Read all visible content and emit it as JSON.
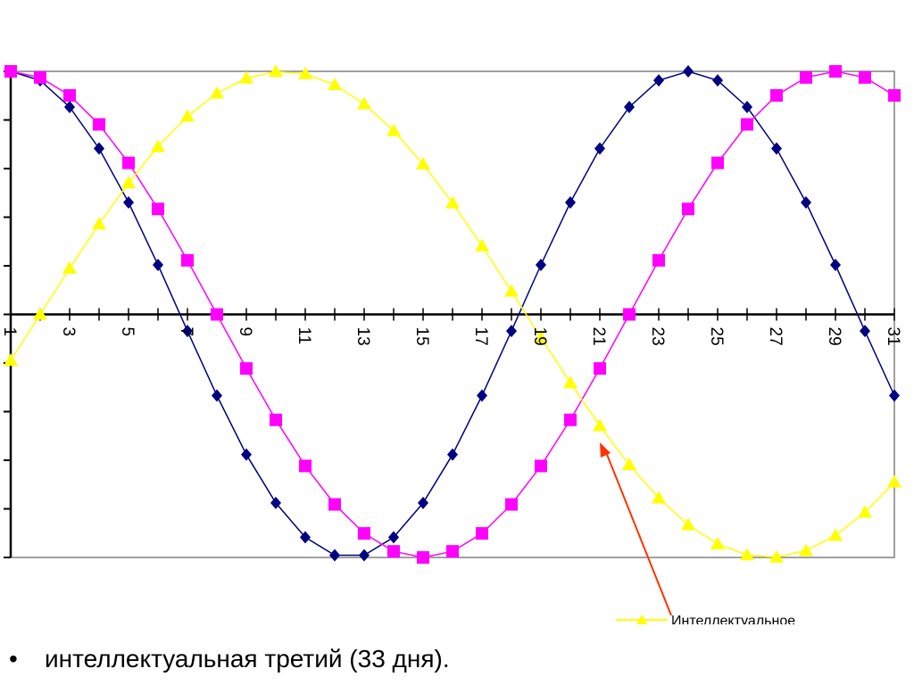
{
  "chart_data": {
    "type": "line",
    "x": [
      1,
      2,
      3,
      4,
      5,
      6,
      7,
      8,
      9,
      10,
      11,
      12,
      13,
      14,
      15,
      16,
      17,
      18,
      19,
      20,
      21,
      22,
      23,
      24,
      25,
      26,
      27,
      28,
      29,
      30,
      31
    ],
    "tick_labels": [
      "1",
      "3",
      "5",
      "7",
      "9",
      "11",
      "13",
      "15",
      "17",
      "19",
      "21",
      "23",
      "25",
      "27",
      "29",
      "31"
    ],
    "ylim": [
      -1,
      1
    ],
    "grid": false,
    "series": [
      {
        "color": "#000080",
        "marker": "diamond",
        "period": 23,
        "values": [
          1.0,
          0.9627,
          0.8533,
          0.6825,
          0.4605,
          0.2035,
          -0.0682,
          -0.334,
          -0.5767,
          -0.7757,
          -0.9172,
          -0.9907,
          -0.9907,
          -0.9172,
          -0.7757,
          -0.5767,
          -0.334,
          -0.0682,
          0.2035,
          0.4605,
          0.6825,
          0.8533,
          0.9627,
          1.0,
          0.9627,
          0.8533,
          0.6825,
          0.4605,
          0.2035,
          -0.0682,
          -0.334
        ]
      },
      {
        "color": "#ff00ff",
        "marker": "square",
        "period": 28,
        "values": [
          1.0,
          0.9749,
          0.901,
          0.7818,
          0.6235,
          0.4339,
          0.2225,
          0.0,
          -0.2225,
          -0.4339,
          -0.6235,
          -0.7818,
          -0.901,
          -0.9749,
          -1.0,
          -0.9749,
          -0.901,
          -0.7818,
          -0.6235,
          -0.4339,
          -0.2225,
          0.0,
          0.2225,
          0.4339,
          0.6235,
          0.7818,
          0.901,
          0.9749,
          1.0,
          0.9749,
          0.901
        ]
      },
      {
        "name": "Интеллектуальное",
        "color": "#ffff00",
        "marker": "triangle",
        "period": 33,
        "values": [
          -0.1893,
          0.0,
          0.1893,
          0.3717,
          0.5407,
          0.6901,
          0.8146,
          0.9096,
          0.9718,
          0.9989,
          0.9898,
          0.945,
          0.866,
          0.7557,
          0.6182,
          0.4582,
          0.2817,
          0.0951,
          -0.0951,
          -0.2817,
          -0.4582,
          -0.6182,
          -0.7557,
          -0.866,
          -0.945,
          -0.9898,
          -0.9989,
          -0.9718,
          -0.9096,
          -0.8146,
          -0.6901
        ]
      }
    ]
  },
  "legend": {
    "label": "Интеллектуальное"
  },
  "annotation": {
    "arrow_color": "#ff3300"
  },
  "bullet": {
    "symbol": "•",
    "text": "интеллектуальная третий (33 дня)."
  }
}
